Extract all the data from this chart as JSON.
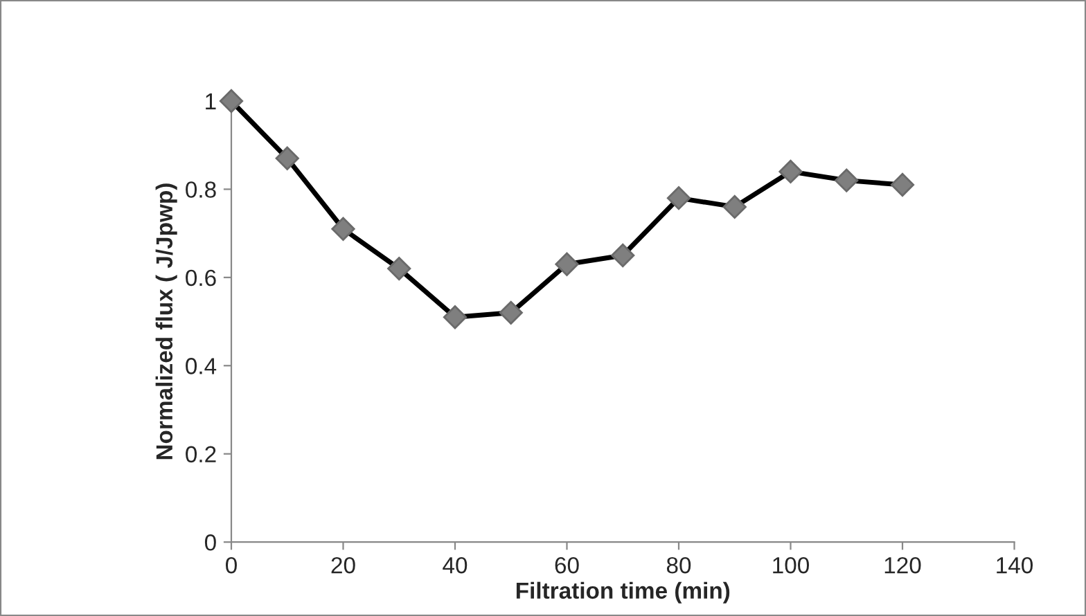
{
  "chart_data": {
    "type": "line",
    "xlabel": "Filtration time (min)",
    "ylabel": "Normalized flux ( J/Jpwp)",
    "xlim": [
      0,
      140
    ],
    "xticks": [
      0,
      20,
      40,
      60,
      80,
      100,
      120,
      140
    ],
    "ylim": [
      0,
      1
    ],
    "yticks": [
      0,
      0.2,
      0.4,
      0.6,
      0.8,
      1
    ],
    "grid": false,
    "legend": false,
    "marker": "diamond",
    "line_style": "solid",
    "series": [
      {
        "color": "#000000",
        "x": [
          0,
          10,
          20,
          30,
          40,
          50,
          60,
          70,
          80,
          90,
          100,
          110,
          120
        ],
        "values": [
          1,
          0.87,
          0.71,
          0.62,
          0.51,
          0.52,
          0.63,
          0.65,
          0.78,
          0.76,
          0.84,
          0.82,
          0.81
        ]
      }
    ]
  }
}
